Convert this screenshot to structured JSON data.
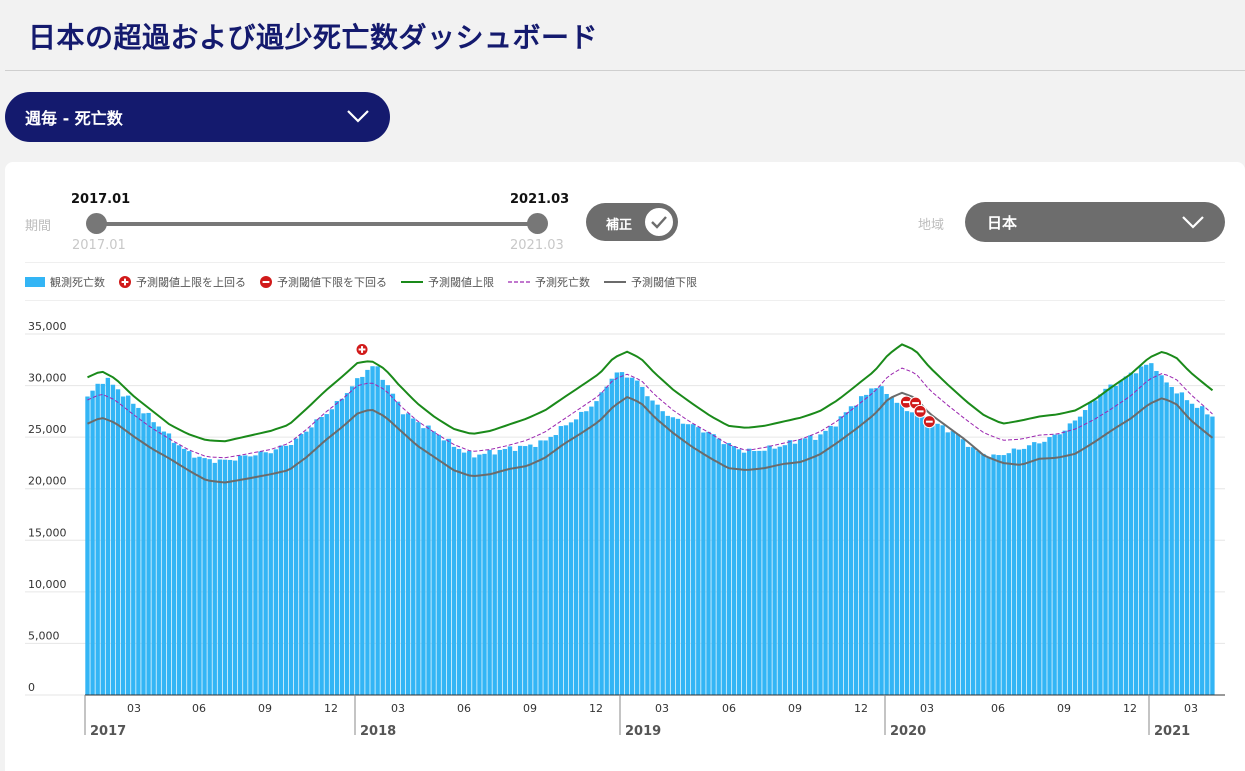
{
  "page": {
    "title": "日本の超過および過少死亡数ダッシュボード"
  },
  "metric_select": {
    "value": "週毎 - 死亡数"
  },
  "period": {
    "label": "期間",
    "start_selected": "2017.01",
    "end_selected": "2021.03",
    "start_min": "2017.01",
    "end_max": "2021.03"
  },
  "adjust_toggle": {
    "label": "補正",
    "checked": true
  },
  "region": {
    "label": "地域",
    "value": "日本"
  },
  "colors": {
    "navy": "#141a6e",
    "bar": "#33b5f5",
    "upper": "#1a8a1a",
    "expected": "#9c27b0",
    "lower": "#6b6b6b",
    "marker": "#d11a1a"
  },
  "chart_data": {
    "type": "bar",
    "title": "",
    "xlabel": "",
    "ylabel": "",
    "ylim": [
      0,
      35000
    ],
    "y_ticks": [
      "0",
      "5,000",
      "10,000",
      "15,000",
      "20,000",
      "25,000",
      "30,000",
      "35,000"
    ],
    "month_ticks": [
      "03",
      "06",
      "09",
      "12",
      "03",
      "06",
      "09",
      "12",
      "03",
      "06",
      "09",
      "12",
      "03",
      "06",
      "09",
      "12",
      "03"
    ],
    "year_ticks": [
      "2017",
      "2018",
      "2019",
      "2020",
      "2021"
    ],
    "legend": [
      {
        "key": "observed",
        "label": "観測死亡数"
      },
      {
        "key": "above",
        "label": "予測閾値上限を上回る"
      },
      {
        "key": "below",
        "label": "予測閾値下限を下回る"
      },
      {
        "key": "upper",
        "label": "予測閾値上限"
      },
      {
        "key": "expected",
        "label": "予測死亡数"
      },
      {
        "key": "lower",
        "label": "予測閾値下限"
      }
    ],
    "weeks": 222,
    "observed_anchors": [
      [
        0,
        28800
      ],
      [
        2,
        30000
      ],
      [
        4,
        30700
      ],
      [
        7,
        29500
      ],
      [
        10,
        28300
      ],
      [
        14,
        26800
      ],
      [
        18,
        25000
      ],
      [
        22,
        23500
      ],
      [
        26,
        22800
      ],
      [
        30,
        22700
      ],
      [
        35,
        23200
      ],
      [
        40,
        23600
      ],
      [
        45,
        24500
      ],
      [
        50,
        26500
      ],
      [
        54,
        28000
      ],
      [
        58,
        30000
      ],
      [
        61,
        31500
      ],
      [
        63,
        32000
      ],
      [
        66,
        29700
      ],
      [
        69,
        27500
      ],
      [
        72,
        26500
      ],
      [
        76,
        25500
      ],
      [
        80,
        24200
      ],
      [
        84,
        23200
      ],
      [
        88,
        23500
      ],
      [
        92,
        23900
      ],
      [
        96,
        24100
      ],
      [
        100,
        24600
      ],
      [
        104,
        26000
      ],
      [
        108,
        27200
      ],
      [
        112,
        28800
      ],
      [
        114,
        30500
      ],
      [
        116,
        31300
      ],
      [
        119,
        30800
      ],
      [
        121,
        30000
      ],
      [
        124,
        28200
      ],
      [
        128,
        26800
      ],
      [
        132,
        26200
      ],
      [
        136,
        25400
      ],
      [
        140,
        24300
      ],
      [
        144,
        23600
      ],
      [
        148,
        23800
      ],
      [
        152,
        24200
      ],
      [
        156,
        24800
      ],
      [
        160,
        25100
      ],
      [
        164,
        26500
      ],
      [
        167,
        28000
      ],
      [
        170,
        29000
      ],
      [
        172,
        30100
      ],
      [
        175,
        29200
      ],
      [
        178,
        28000
      ],
      [
        182,
        27000
      ],
      [
        186,
        26200
      ],
      [
        190,
        25300
      ],
      [
        194,
        23700
      ],
      [
        198,
        23100
      ],
      [
        202,
        23600
      ],
      [
        206,
        24200
      ],
      [
        210,
        24800
      ],
      [
        214,
        25800
      ],
      [
        218,
        27600
      ],
      [
        222,
        29500
      ],
      [
        226,
        30500
      ],
      [
        230,
        31700
      ],
      [
        233,
        32200
      ],
      [
        235,
        30600
      ],
      [
        238,
        29500
      ],
      [
        241,
        28400
      ],
      [
        244,
        27600
      ],
      [
        246,
        27000
      ]
    ],
    "upper_anchors": [
      [
        0,
        30800
      ],
      [
        3,
        31400
      ],
      [
        6,
        30700
      ],
      [
        10,
        29000
      ],
      [
        14,
        27600
      ],
      [
        18,
        26200
      ],
      [
        22,
        25300
      ],
      [
        26,
        24700
      ],
      [
        30,
        24600
      ],
      [
        34,
        25000
      ],
      [
        40,
        25600
      ],
      [
        44,
        26200
      ],
      [
        48,
        27800
      ],
      [
        52,
        29500
      ],
      [
        56,
        31000
      ],
      [
        59,
        32200
      ],
      [
        62,
        32400
      ],
      [
        65,
        31600
      ],
      [
        68,
        30100
      ],
      [
        72,
        28300
      ],
      [
        76,
        26900
      ],
      [
        80,
        25800
      ],
      [
        84,
        25300
      ],
      [
        88,
        25600
      ],
      [
        92,
        26200
      ],
      [
        96,
        26800
      ],
      [
        100,
        27600
      ],
      [
        104,
        28800
      ],
      [
        108,
        30000
      ],
      [
        112,
        31200
      ],
      [
        115,
        32700
      ],
      [
        118,
        33300
      ],
      [
        121,
        32600
      ],
      [
        124,
        31200
      ],
      [
        128,
        29600
      ],
      [
        132,
        28300
      ],
      [
        136,
        27100
      ],
      [
        140,
        26100
      ],
      [
        144,
        25900
      ],
      [
        148,
        26100
      ],
      [
        152,
        26500
      ],
      [
        156,
        26900
      ],
      [
        160,
        27500
      ],
      [
        164,
        28600
      ],
      [
        168,
        30000
      ],
      [
        172,
        31400
      ],
      [
        175,
        33000
      ],
      [
        178,
        34000
      ],
      [
        181,
        33400
      ],
      [
        184,
        31800
      ],
      [
        188,
        30100
      ],
      [
        192,
        28500
      ],
      [
        196,
        27100
      ],
      [
        200,
        26300
      ],
      [
        204,
        26600
      ],
      [
        208,
        27000
      ],
      [
        212,
        27200
      ],
      [
        216,
        27600
      ],
      [
        220,
        28600
      ],
      [
        224,
        29900
      ],
      [
        228,
        31100
      ],
      [
        232,
        32700
      ],
      [
        235,
        33300
      ],
      [
        238,
        32700
      ],
      [
        241,
        31300
      ],
      [
        244,
        30200
      ],
      [
        246,
        29500
      ]
    ],
    "expected_anchors": [
      [
        0,
        28600
      ],
      [
        3,
        29200
      ],
      [
        6,
        28600
      ],
      [
        10,
        27200
      ],
      [
        14,
        25900
      ],
      [
        18,
        24800
      ],
      [
        22,
        23800
      ],
      [
        26,
        23100
      ],
      [
        30,
        23000
      ],
      [
        34,
        23300
      ],
      [
        40,
        23800
      ],
      [
        44,
        24400
      ],
      [
        48,
        25800
      ],
      [
        52,
        27400
      ],
      [
        56,
        28800
      ],
      [
        59,
        30000
      ],
      [
        62,
        30300
      ],
      [
        65,
        29600
      ],
      [
        68,
        28200
      ],
      [
        72,
        26600
      ],
      [
        76,
        25400
      ],
      [
        80,
        24300
      ],
      [
        84,
        23600
      ],
      [
        88,
        23800
      ],
      [
        92,
        24200
      ],
      [
        96,
        24700
      ],
      [
        100,
        25500
      ],
      [
        104,
        26700
      ],
      [
        108,
        27900
      ],
      [
        112,
        29100
      ],
      [
        115,
        30600
      ],
      [
        118,
        31100
      ],
      [
        121,
        30500
      ],
      [
        124,
        29100
      ],
      [
        128,
        27600
      ],
      [
        132,
        26400
      ],
      [
        136,
        25400
      ],
      [
        140,
        24300
      ],
      [
        144,
        23700
      ],
      [
        148,
        24000
      ],
      [
        152,
        24400
      ],
      [
        156,
        24800
      ],
      [
        160,
        25500
      ],
      [
        164,
        26600
      ],
      [
        168,
        28000
      ],
      [
        172,
        29400
      ],
      [
        175,
        30900
      ],
      [
        178,
        31700
      ],
      [
        181,
        31200
      ],
      [
        184,
        29600
      ],
      [
        188,
        28100
      ],
      [
        192,
        26700
      ],
      [
        196,
        25400
      ],
      [
        200,
        24700
      ],
      [
        204,
        24800
      ],
      [
        208,
        25200
      ],
      [
        212,
        25300
      ],
      [
        216,
        25800
      ],
      [
        220,
        26700
      ],
      [
        224,
        27800
      ],
      [
        228,
        29000
      ],
      [
        232,
        30600
      ],
      [
        235,
        31200
      ],
      [
        238,
        30600
      ],
      [
        241,
        29200
      ],
      [
        244,
        28000
      ],
      [
        246,
        27200
      ]
    ],
    "lower_anchors": [
      [
        0,
        26300
      ],
      [
        3,
        26900
      ],
      [
        6,
        26400
      ],
      [
        10,
        25100
      ],
      [
        14,
        23900
      ],
      [
        18,
        22900
      ],
      [
        22,
        21800
      ],
      [
        26,
        20800
      ],
      [
        30,
        20600
      ],
      [
        34,
        20900
      ],
      [
        40,
        21400
      ],
      [
        44,
        21800
      ],
      [
        48,
        23100
      ],
      [
        52,
        24700
      ],
      [
        56,
        26100
      ],
      [
        59,
        27300
      ],
      [
        62,
        27700
      ],
      [
        65,
        27000
      ],
      [
        68,
        25800
      ],
      [
        72,
        24200
      ],
      [
        76,
        23000
      ],
      [
        80,
        21800
      ],
      [
        84,
        21200
      ],
      [
        88,
        21400
      ],
      [
        92,
        21900
      ],
      [
        96,
        22200
      ],
      [
        100,
        23000
      ],
      [
        104,
        24300
      ],
      [
        108,
        25400
      ],
      [
        112,
        26600
      ],
      [
        115,
        28000
      ],
      [
        118,
        28900
      ],
      [
        121,
        28300
      ],
      [
        124,
        26900
      ],
      [
        128,
        25400
      ],
      [
        132,
        24100
      ],
      [
        136,
        23000
      ],
      [
        140,
        22000
      ],
      [
        144,
        21800
      ],
      [
        148,
        22000
      ],
      [
        152,
        22400
      ],
      [
        156,
        22600
      ],
      [
        160,
        23300
      ],
      [
        164,
        24500
      ],
      [
        168,
        25800
      ],
      [
        172,
        27200
      ],
      [
        175,
        28700
      ],
      [
        178,
        29300
      ],
      [
        181,
        28800
      ],
      [
        184,
        27300
      ],
      [
        188,
        26000
      ],
      [
        192,
        24700
      ],
      [
        196,
        23200
      ],
      [
        200,
        22500
      ],
      [
        204,
        22300
      ],
      [
        208,
        22900
      ],
      [
        212,
        23000
      ],
      [
        216,
        23400
      ],
      [
        220,
        24500
      ],
      [
        224,
        25700
      ],
      [
        228,
        26800
      ],
      [
        232,
        28200
      ],
      [
        235,
        28800
      ],
      [
        238,
        28200
      ],
      [
        241,
        26700
      ],
      [
        244,
        25600
      ],
      [
        246,
        24900
      ]
    ],
    "above_markers": [
      {
        "week": 60,
        "value": 33500
      }
    ],
    "below_markers": [
      {
        "week": 179,
        "value": 28400
      },
      {
        "week": 181,
        "value": 28300
      },
      {
        "week": 182,
        "value": 27500
      },
      {
        "week": 184,
        "value": 26500
      }
    ]
  }
}
